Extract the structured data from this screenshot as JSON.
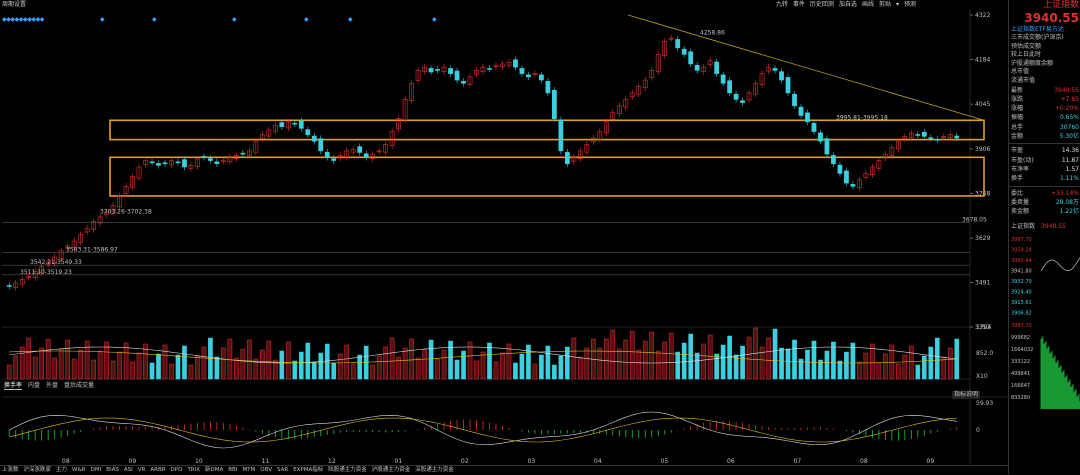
{
  "top_bar": {
    "left_items": [
      "周期",
      "设置"
    ],
    "tools": [
      "九转",
      "事件",
      "历史回测",
      "加自选",
      "画线",
      "剪贴",
      "▾",
      "预测"
    ]
  },
  "right_panel": {
    "title": "上证指数",
    "price": "3940.55",
    "link": "上证指数ETF易方达",
    "info_lines": [
      "三市成交额(沪深京)",
      "预估成交额",
      "较上日此时",
      "沪股通额度余额",
      "总市值",
      "流通市值"
    ],
    "quote_rows": [
      {
        "k": "最新",
        "v": "3940.55",
        "cls": "up"
      },
      {
        "k": "涨跌",
        "v": "+7.85",
        "cls": "up"
      },
      {
        "k": "涨幅",
        "v": "+0.20%",
        "cls": "up"
      },
      {
        "k": "振幅",
        "v": "0.65%",
        "cls": "cy"
      },
      {
        "k": "总手",
        "v": "30760",
        "cls": "cy"
      },
      {
        "k": "金额",
        "v": "5.30亿",
        "cls": "cy"
      }
    ],
    "val_rows": [
      {
        "k": "市盈",
        "v": "14.36",
        "cls": "yl"
      },
      {
        "k": "市盈(动)",
        "v": "11.87",
        "cls": "yl"
      },
      {
        "k": "市净率",
        "v": "1.57",
        "cls": "yl"
      },
      {
        "k": "换手",
        "v": "1.11%",
        "cls": "cy"
      }
    ],
    "ord_rows": [
      {
        "k": "委比",
        "v": "+33.14%",
        "cls": "up"
      },
      {
        "k": "委卖量",
        "v": "28.08万",
        "cls": "cy"
      },
      {
        "k": "卖金额",
        "v": "1.22亿",
        "cls": "cy"
      }
    ],
    "mini_label": "上证指数",
    "mini_value": "3940.55",
    "mini_ticks": [
      "3997.70",
      "3959.24",
      "3950.44",
      "3941.80",
      "3932.70",
      "3924.40",
      "3915.61",
      "3906.82"
    ],
    "mini_vol_ticks": [
      "3997.70",
      "999682",
      "1664032",
      "333122",
      "499841",
      "166647",
      "833280"
    ]
  },
  "sub_tabs": [
    "换手率",
    "内盘",
    "外盘",
    "盘后成交量"
  ],
  "indicator_help": "指标说明",
  "bottom_tabs": [
    "上涨数",
    "沪深涨跌家",
    "主力",
    "W&R",
    "DMI",
    "BIAS",
    "ASI",
    "VR",
    "ARBR",
    "DPO",
    "TRIX",
    "新DMA",
    "BBI",
    "MTM",
    "OBV",
    "SAR",
    "EXPMA指标",
    "陆股通主力资金",
    "沪股通主力资金",
    "深股通主力资金"
  ],
  "chart_data": {
    "type": "candlestick",
    "title": "",
    "xlabel": "",
    "ylabel": "",
    "ylim": [
      3353,
      4322
    ],
    "y_ticks": [
      4322,
      4184,
      4045,
      3906,
      3768,
      3629,
      3491,
      3353
    ],
    "x_ticks": [
      "08",
      "09",
      "10",
      "11",
      "12",
      "01",
      "02",
      "03",
      "04",
      "05",
      "06",
      "07",
      "08",
      "09"
    ],
    "annotations": [
      "4258.86",
      "3995.81-3995.18",
      "3703.26-3702.38",
      "3678.05",
      "3583.31-3586.97",
      "3542.21-3549.33",
      "3511.10-3519.23"
    ],
    "box_upper": [
      3995,
      3935
    ],
    "box_lower": [
      3880,
      3760
    ],
    "volume_ticks": [
      "1704",
      "852.0",
      "X10"
    ],
    "indicator_ticks": [
      "59.93",
      "0"
    ],
    "close_series": [
      3480,
      3490,
      3500,
      3510,
      3525,
      3540,
      3555,
      3570,
      3590,
      3605,
      3620,
      3640,
      3660,
      3680,
      3695,
      3710,
      3730,
      3760,
      3790,
      3820,
      3850,
      3870,
      3865,
      3855,
      3860,
      3870,
      3865,
      3850,
      3855,
      3875,
      3880,
      3870,
      3860,
      3870,
      3880,
      3885,
      3890,
      3900,
      3930,
      3950,
      3965,
      3980,
      3975,
      3990,
      3985,
      3970,
      3950,
      3930,
      3900,
      3880,
      3870,
      3885,
      3900,
      3905,
      3895,
      3880,
      3890,
      3900,
      3920,
      3960,
      4000,
      4060,
      4110,
      4150,
      4160,
      4145,
      4150,
      4160,
      4140,
      4120,
      4110,
      4130,
      4150,
      4160,
      4155,
      4165,
      4170,
      4175,
      4160,
      4140,
      4130,
      4140,
      4120,
      4080,
      4000,
      3900,
      3860,
      3880,
      3900,
      3920,
      3940,
      3960,
      3990,
      4020,
      4040,
      4060,
      4080,
      4100,
      4120,
      4150,
      4200,
      4240,
      4250,
      4220,
      4200,
      4170,
      4150,
      4160,
      4180,
      4140,
      4110,
      4080,
      4060,
      4050,
      4080,
      4110,
      4140,
      4160,
      4150,
      4120,
      4080,
      4040,
      4010,
      3990,
      3960,
      3930,
      3890,
      3860,
      3830,
      3800,
      3790,
      3810,
      3830,
      3850,
      3870,
      3890,
      3910,
      3930,
      3945,
      3955,
      3950,
      3945,
      3940,
      3935,
      3945,
      3950,
      3940
    ]
  }
}
